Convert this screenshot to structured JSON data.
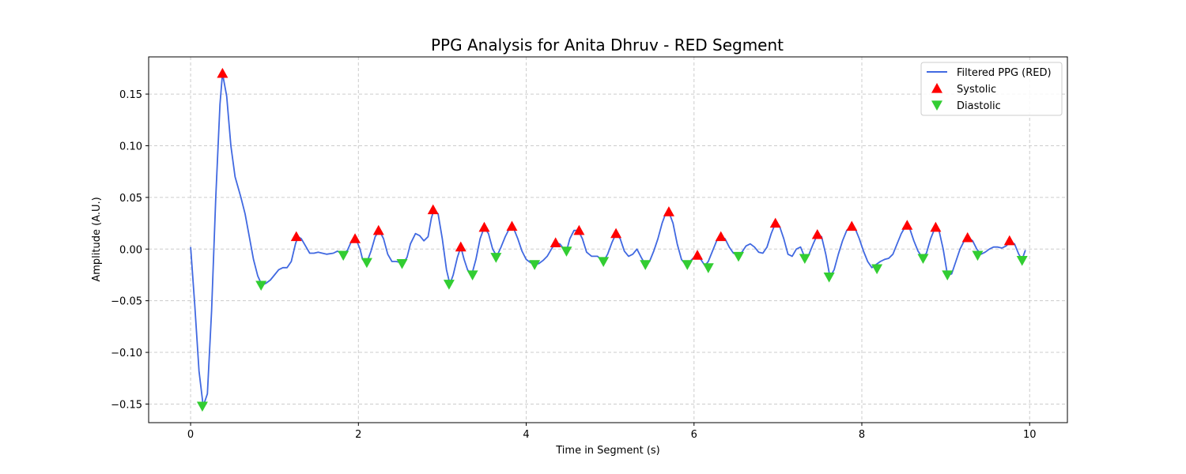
{
  "chart_data": {
    "type": "line",
    "title": "PPG Analysis for Anita Dhruv - RED Segment",
    "xlabel": "Time in Segment (s)",
    "ylabel": "Amplitude (A.U.)",
    "xlim": [
      -0.5,
      10.45
    ],
    "ylim": [
      -0.168,
      0.186
    ],
    "xticks": [
      0,
      2,
      4,
      6,
      8,
      10
    ],
    "xtick_labels": [
      "0",
      "2",
      "4",
      "6",
      "8",
      "10"
    ],
    "yticks": [
      -0.15,
      -0.1,
      -0.05,
      0.0,
      0.05,
      0.1,
      0.15
    ],
    "ytick_labels": [
      "−0.15",
      "−0.10",
      "−0.05",
      "0.00",
      "0.05",
      "0.10",
      "0.15"
    ],
    "grid": true,
    "legend_position": "top-right",
    "colors": {
      "line": "#4169e1",
      "systolic": "#ff0000",
      "diastolic": "#32cd32",
      "grid": "#cccccc"
    },
    "series": [
      {
        "name": "Filtered PPG (RED)",
        "kind": "line",
        "points": [
          [
            0.0,
            0.002
          ],
          [
            0.05,
            -0.055
          ],
          [
            0.1,
            -0.118
          ],
          [
            0.15,
            -0.152
          ],
          [
            0.2,
            -0.14
          ],
          [
            0.25,
            -0.06
          ],
          [
            0.3,
            0.05
          ],
          [
            0.35,
            0.14
          ],
          [
            0.38,
            0.17
          ],
          [
            0.43,
            0.148
          ],
          [
            0.48,
            0.1
          ],
          [
            0.53,
            0.07
          ],
          [
            0.6,
            0.05
          ],
          [
            0.65,
            0.034
          ],
          [
            0.7,
            0.012
          ],
          [
            0.75,
            -0.01
          ],
          [
            0.8,
            -0.026
          ],
          [
            0.85,
            -0.035
          ],
          [
            0.9,
            -0.033
          ],
          [
            0.95,
            -0.03
          ],
          [
            1.0,
            -0.025
          ],
          [
            1.05,
            -0.02
          ],
          [
            1.1,
            -0.018
          ],
          [
            1.15,
            -0.018
          ],
          [
            1.2,
            -0.012
          ],
          [
            1.25,
            0.005
          ],
          [
            1.28,
            0.012
          ],
          [
            1.32,
            0.01
          ],
          [
            1.37,
            0.003
          ],
          [
            1.42,
            -0.004
          ],
          [
            1.47,
            -0.004
          ],
          [
            1.52,
            -0.003
          ],
          [
            1.57,
            -0.004
          ],
          [
            1.62,
            -0.005
          ],
          [
            1.7,
            -0.004
          ],
          [
            1.75,
            -0.002
          ],
          [
            1.82,
            -0.005
          ],
          [
            1.87,
            -0.001
          ],
          [
            1.92,
            0.008
          ],
          [
            1.97,
            0.01
          ],
          [
            2.02,
            0.0
          ],
          [
            2.05,
            -0.01
          ],
          [
            2.1,
            -0.013
          ],
          [
            2.15,
            -0.002
          ],
          [
            2.2,
            0.012
          ],
          [
            2.25,
            0.018
          ],
          [
            2.3,
            0.01
          ],
          [
            2.35,
            -0.005
          ],
          [
            2.4,
            -0.012
          ],
          [
            2.45,
            -0.012
          ],
          [
            2.5,
            -0.013
          ],
          [
            2.53,
            -0.014
          ],
          [
            2.58,
            -0.008
          ],
          [
            2.62,
            0.005
          ],
          [
            2.68,
            0.015
          ],
          [
            2.73,
            0.013
          ],
          [
            2.78,
            0.008
          ],
          [
            2.83,
            0.012
          ],
          [
            2.87,
            0.03
          ],
          [
            2.9,
            0.038
          ],
          [
            2.95,
            0.034
          ],
          [
            3.0,
            0.01
          ],
          [
            3.05,
            -0.02
          ],
          [
            3.09,
            -0.034
          ],
          [
            3.13,
            -0.025
          ],
          [
            3.18,
            -0.008
          ],
          [
            3.22,
            0.002
          ],
          [
            3.26,
            -0.01
          ],
          [
            3.3,
            -0.02
          ],
          [
            3.35,
            -0.025
          ],
          [
            3.4,
            -0.01
          ],
          [
            3.45,
            0.01
          ],
          [
            3.5,
            0.021
          ],
          [
            3.55,
            0.015
          ],
          [
            3.6,
            0.0
          ],
          [
            3.65,
            -0.007
          ],
          [
            3.7,
            0.002
          ],
          [
            3.75,
            0.012
          ],
          [
            3.8,
            0.02
          ],
          [
            3.84,
            0.022
          ],
          [
            3.9,
            0.01
          ],
          [
            3.95,
            -0.002
          ],
          [
            4.0,
            -0.01
          ],
          [
            4.05,
            -0.013
          ],
          [
            4.1,
            -0.015
          ],
          [
            4.15,
            -0.014
          ],
          [
            4.2,
            -0.011
          ],
          [
            4.25,
            -0.007
          ],
          [
            4.3,
            0.0
          ],
          [
            4.35,
            0.006
          ],
          [
            4.4,
            0.005
          ],
          [
            4.45,
            0.0
          ],
          [
            4.48,
            -0.002
          ],
          [
            4.52,
            0.01
          ],
          [
            4.57,
            0.018
          ],
          [
            4.62,
            0.018
          ],
          [
            4.67,
            0.01
          ],
          [
            4.72,
            -0.003
          ],
          [
            4.78,
            -0.007
          ],
          [
            4.85,
            -0.007
          ],
          [
            4.92,
            -0.012
          ],
          [
            4.97,
            -0.005
          ],
          [
            5.02,
            0.006
          ],
          [
            5.07,
            0.015
          ],
          [
            5.12,
            0.01
          ],
          [
            5.17,
            -0.002
          ],
          [
            5.22,
            -0.007
          ],
          [
            5.27,
            -0.005
          ],
          [
            5.32,
            0.0
          ],
          [
            5.37,
            -0.008
          ],
          [
            5.42,
            -0.015
          ],
          [
            5.47,
            -0.012
          ],
          [
            5.52,
            -0.002
          ],
          [
            5.57,
            0.01
          ],
          [
            5.62,
            0.025
          ],
          [
            5.66,
            0.034
          ],
          [
            5.7,
            0.036
          ],
          [
            5.75,
            0.025
          ],
          [
            5.8,
            0.005
          ],
          [
            5.85,
            -0.01
          ],
          [
            5.9,
            -0.015
          ],
          [
            5.95,
            -0.012
          ],
          [
            6.0,
            -0.008
          ],
          [
            6.03,
            -0.006
          ],
          [
            6.08,
            -0.01
          ],
          [
            6.13,
            -0.016
          ],
          [
            6.17,
            -0.012
          ],
          [
            6.22,
            -0.002
          ],
          [
            6.27,
            0.008
          ],
          [
            6.32,
            0.012
          ],
          [
            6.37,
            0.01
          ],
          [
            6.42,
            0.002
          ],
          [
            6.47,
            -0.004
          ],
          [
            6.52,
            -0.006
          ],
          [
            6.57,
            -0.003
          ],
          [
            6.62,
            0.003
          ],
          [
            6.67,
            0.005
          ],
          [
            6.72,
            0.002
          ],
          [
            6.77,
            -0.003
          ],
          [
            6.82,
            -0.004
          ],
          [
            6.87,
            0.002
          ],
          [
            6.92,
            0.015
          ],
          [
            6.97,
            0.025
          ],
          [
            7.02,
            0.022
          ],
          [
            7.07,
            0.01
          ],
          [
            7.12,
            -0.005
          ],
          [
            7.17,
            -0.007
          ],
          [
            7.22,
            0.0
          ],
          [
            7.27,
            0.002
          ],
          [
            7.32,
            -0.008
          ],
          [
            7.37,
            -0.005
          ],
          [
            7.42,
            0.005
          ],
          [
            7.47,
            0.014
          ],
          [
            7.52,
            0.012
          ],
          [
            7.57,
            -0.005
          ],
          [
            7.62,
            -0.027
          ],
          [
            7.67,
            -0.02
          ],
          [
            7.72,
            -0.005
          ],
          [
            7.77,
            0.008
          ],
          [
            7.82,
            0.018
          ],
          [
            7.87,
            0.022
          ],
          [
            7.92,
            0.02
          ],
          [
            7.97,
            0.01
          ],
          [
            8.02,
            -0.002
          ],
          [
            8.07,
            -0.012
          ],
          [
            8.12,
            -0.018
          ],
          [
            8.17,
            -0.015
          ],
          [
            8.22,
            -0.012
          ],
          [
            8.27,
            -0.01
          ],
          [
            8.32,
            -0.009
          ],
          [
            8.37,
            -0.005
          ],
          [
            8.42,
            0.005
          ],
          [
            8.47,
            0.015
          ],
          [
            8.52,
            0.022
          ],
          [
            8.57,
            0.02
          ],
          [
            8.62,
            0.008
          ],
          [
            8.67,
            -0.002
          ],
          [
            8.72,
            -0.008
          ],
          [
            8.77,
            -0.004
          ],
          [
            8.82,
            0.01
          ],
          [
            8.87,
            0.02
          ],
          [
            8.92,
            0.018
          ],
          [
            8.97,
            0.0
          ],
          [
            9.02,
            -0.025
          ],
          [
            9.07,
            -0.024
          ],
          [
            9.12,
            -0.012
          ],
          [
            9.17,
            0.0
          ],
          [
            9.22,
            0.008
          ],
          [
            9.27,
            0.011
          ],
          [
            9.32,
            0.008
          ],
          [
            9.37,
            0.0
          ],
          [
            9.42,
            -0.005
          ],
          [
            9.47,
            -0.003
          ],
          [
            9.52,
            0.0
          ],
          [
            9.57,
            0.002
          ],
          [
            9.62,
            0.002
          ],
          [
            9.67,
            0.001
          ],
          [
            9.72,
            0.003
          ],
          [
            9.77,
            0.007
          ],
          [
            9.82,
            0.005
          ],
          [
            9.87,
            -0.005
          ],
          [
            9.91,
            -0.01
          ],
          [
            9.95,
            -0.001
          ]
        ]
      },
      {
        "name": "Systolic",
        "kind": "marker-up",
        "points": [
          [
            0.38,
            0.17
          ],
          [
            1.26,
            0.012
          ],
          [
            1.96,
            0.01
          ],
          [
            2.24,
            0.018
          ],
          [
            2.89,
            0.038
          ],
          [
            3.22,
            0.002
          ],
          [
            3.5,
            0.021
          ],
          [
            3.83,
            0.022
          ],
          [
            4.35,
            0.006
          ],
          [
            4.63,
            0.018
          ],
          [
            5.07,
            0.015
          ],
          [
            5.7,
            0.036
          ],
          [
            6.04,
            -0.006
          ],
          [
            6.32,
            0.012
          ],
          [
            6.97,
            0.025
          ],
          [
            7.47,
            0.014
          ],
          [
            7.88,
            0.022
          ],
          [
            8.54,
            0.023
          ],
          [
            8.88,
            0.021
          ],
          [
            9.26,
            0.011
          ],
          [
            9.76,
            0.008
          ]
        ]
      },
      {
        "name": "Diastolic",
        "kind": "marker-down",
        "points": [
          [
            0.14,
            -0.152
          ],
          [
            0.84,
            -0.035
          ],
          [
            1.82,
            -0.006
          ],
          [
            2.1,
            -0.013
          ],
          [
            2.52,
            -0.014
          ],
          [
            3.08,
            -0.034
          ],
          [
            3.36,
            -0.025
          ],
          [
            3.64,
            -0.008
          ],
          [
            4.1,
            -0.015
          ],
          [
            4.48,
            -0.002
          ],
          [
            4.92,
            -0.012
          ],
          [
            5.42,
            -0.015
          ],
          [
            5.92,
            -0.015
          ],
          [
            6.17,
            -0.018
          ],
          [
            6.53,
            -0.007
          ],
          [
            7.32,
            -0.009
          ],
          [
            7.61,
            -0.027
          ],
          [
            8.18,
            -0.019
          ],
          [
            8.73,
            -0.009
          ],
          [
            9.02,
            -0.025
          ],
          [
            9.38,
            -0.006
          ],
          [
            9.91,
            -0.011
          ]
        ]
      }
    ]
  }
}
